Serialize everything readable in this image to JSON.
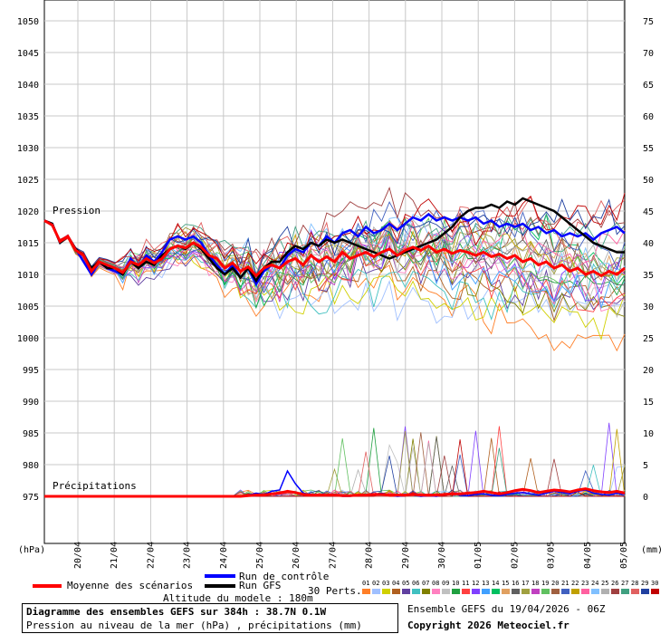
{
  "chart_data": {
    "type": "line",
    "title": "Diagramme des ensembles GEFS sur 384h : 38.7N 0.1W",
    "subtitle": "Pression au niveau de la mer (hPa) , précipitations (mm)",
    "left_axis_label": "(hPa)",
    "right_axis_label": "(mm)",
    "left_ticks": [
      1050,
      1045,
      1040,
      1035,
      1030,
      1025,
      1020,
      1015,
      1010,
      1005,
      1000,
      995,
      990,
      985,
      980,
      975
    ],
    "right_ticks": [
      75,
      70,
      65,
      60,
      55,
      50,
      45,
      40,
      35,
      30,
      25,
      20,
      15,
      10,
      5,
      0
    ],
    "ylim_pressure": [
      975,
      1050
    ],
    "ylim_precip": [
      0,
      75
    ],
    "x_ticks": [
      "20/04",
      "21/04",
      "22/04",
      "23/04",
      "24/04",
      "25/04",
      "26/04",
      "27/04",
      "28/04",
      "29/04",
      "30/04",
      "01/05",
      "02/05",
      "03/05",
      "04/05",
      "05/05"
    ],
    "panel_labels": {
      "pressure": "Pression",
      "precip": "Précipitations"
    },
    "series": [
      {
        "name": "Moyenne des scénarios",
        "color": "#ff0000",
        "values": [
          1018.5,
          1017.8,
          1015.2,
          1016.0,
          1013.8,
          1013.0,
          1010.5,
          1012.0,
          1011.5,
          1011.0,
          1010.3,
          1012.0,
          1011.5,
          1012.5,
          1011.8,
          1012.5,
          1014.0,
          1014.5,
          1014.2,
          1015.0,
          1014.3,
          1013.0,
          1012.5,
          1011.0,
          1011.8,
          1010.5,
          1011.2,
          1009.8,
          1011.0,
          1011.5,
          1011.0,
          1012.0,
          1012.5,
          1011.5,
          1013.0,
          1012.0,
          1012.8,
          1012.0,
          1013.5,
          1012.5,
          1013.0,
          1013.5,
          1012.8,
          1013.5,
          1014.0,
          1013.0,
          1013.8,
          1014.3,
          1013.8,
          1014.5,
          1013.5,
          1014.0,
          1013.3,
          1013.8,
          1013.5,
          1013.0,
          1013.5,
          1012.8,
          1013.2,
          1012.5,
          1013.0,
          1012.0,
          1012.5,
          1011.5,
          1012.0,
          1011.0,
          1011.5,
          1010.5,
          1011.0,
          1010.0,
          1010.5,
          1009.8,
          1010.5,
          1010.0,
          1011.0
        ]
      },
      {
        "name": "Run de contrôle",
        "color": "#0000ff",
        "values": [
          1018.5,
          1018.0,
          1015.0,
          1016.0,
          1014.0,
          1012.0,
          1010.0,
          1012.0,
          1011.0,
          1010.5,
          1010.0,
          1012.5,
          1011.0,
          1013.0,
          1012.0,
          1013.5,
          1015.5,
          1016.0,
          1015.5,
          1016.0,
          1015.0,
          1013.0,
          1011.5,
          1010.0,
          1011.5,
          1009.5,
          1011.0,
          1008.5,
          1010.5,
          1011.5,
          1011.0,
          1013.0,
          1014.0,
          1013.5,
          1015.0,
          1014.5,
          1016.0,
          1015.0,
          1016.5,
          1017.0,
          1016.0,
          1017.5,
          1016.5,
          1017.0,
          1018.0,
          1017.0,
          1018.0,
          1019.0,
          1018.5,
          1019.5,
          1018.5,
          1019.0,
          1018.5,
          1019.0,
          1018.5,
          1019.0,
          1018.0,
          1018.5,
          1017.5,
          1018.0,
          1017.5,
          1018.0,
          1017.0,
          1017.5,
          1016.5,
          1017.0,
          1016.0,
          1016.5,
          1016.0,
          1016.5,
          1015.5,
          1016.5,
          1017.0,
          1017.5,
          1016.5
        ]
      },
      {
        "name": "Run GFS",
        "color": "#000000",
        "values": [
          1018.5,
          1018.0,
          1015.0,
          1016.0,
          1014.0,
          1013.0,
          1011.0,
          1012.0,
          1011.0,
          1011.0,
          1010.0,
          1012.0,
          1011.0,
          1012.0,
          1011.5,
          1013.0,
          1014.0,
          1014.5,
          1014.0,
          1015.0,
          1014.0,
          1012.5,
          1011.0,
          1010.0,
          1011.0,
          1009.5,
          1011.0,
          1009.0,
          1011.0,
          1012.0,
          1012.0,
          1013.5,
          1014.5,
          1014.0,
          1015.0,
          1014.5,
          1015.5,
          1015.0,
          1015.5,
          1015.0,
          1014.5,
          1014.0,
          1013.5,
          1013.0,
          1012.5,
          1013.0,
          1013.5,
          1014.0,
          1014.5,
          1015.0,
          1015.5,
          1016.5,
          1017.5,
          1019.0,
          1020.0,
          1020.5,
          1020.5,
          1021.0,
          1020.5,
          1021.5,
          1021.0,
          1022.0,
          1021.5,
          1021.0,
          1020.5,
          1020.0,
          1019.0,
          1018.0,
          1017.0,
          1016.0,
          1015.0,
          1014.5,
          1014.0,
          1013.5,
          1013.5
        ]
      }
    ],
    "precip_control": [
      0,
      0,
      0,
      0,
      0,
      0,
      0,
      0,
      0,
      0,
      0,
      0,
      0,
      0,
      0,
      0,
      0,
      0,
      0,
      0,
      0,
      0,
      0,
      0,
      0,
      0,
      0.2,
      0.5,
      0.3,
      0.8,
      1.0,
      4.0,
      2.0,
      0.5,
      0.3,
      0.1,
      0.2,
      0.3,
      0,
      0,
      0.2,
      0.1,
      0.3,
      0.5,
      0.2,
      0,
      0.1,
      0.2,
      0,
      0.1,
      0,
      0.3,
      0.5,
      0.2,
      0.1,
      0.3,
      0.4,
      0.2,
      0.1,
      0.3,
      0.5,
      0.6,
      0.4,
      0.2,
      0.5,
      0.8,
      0.6,
      0.4,
      0.8,
      1.0,
      0.5,
      0.3,
      0.2,
      0.5,
      0.3
    ],
    "precip_mean": [
      0,
      0,
      0,
      0,
      0,
      0,
      0,
      0,
      0,
      0,
      0,
      0,
      0,
      0,
      0,
      0,
      0,
      0,
      0,
      0,
      0,
      0,
      0,
      0,
      0,
      0,
      0.1,
      0.2,
      0.2,
      0.4,
      0.5,
      0.8,
      0.6,
      0.3,
      0.2,
      0.2,
      0.2,
      0.2,
      0.1,
      0.1,
      0.2,
      0.2,
      0.3,
      0.3,
      0.2,
      0.2,
      0.2,
      0.3,
      0.2,
      0.2,
      0.2,
      0.3,
      0.4,
      0.4,
      0.5,
      0.6,
      0.8,
      0.6,
      0.4,
      0.6,
      0.9,
      1.1,
      0.9,
      0.6,
      0.8,
      1.0,
      0.9,
      0.7,
      1.0,
      1.2,
      0.9,
      0.7,
      0.6,
      0.8,
      0.5
    ]
  },
  "perturbations": {
    "count_label": "30 Perts.",
    "numbers": [
      "01",
      "02",
      "03",
      "04",
      "05",
      "06",
      "07",
      "08",
      "09",
      "10",
      "11",
      "12",
      "13",
      "14",
      "15",
      "16",
      "17",
      "18",
      "19",
      "20",
      "21",
      "22",
      "23",
      "24",
      "25",
      "26",
      "27",
      "28",
      "29",
      "30"
    ],
    "colors": [
      "#ff7f27",
      "#a0c0ff",
      "#d0d000",
      "#b06020",
      "#6040a0",
      "#40c0c0",
      "#808000",
      "#ff80c0",
      "#c0c0c0",
      "#20a040",
      "#ff4040",
      "#8040ff",
      "#40a0ff",
      "#00c060",
      "#e0a060",
      "#606060",
      "#a0a040",
      "#c040c0",
      "#60c060",
      "#a06040",
      "#4060c0",
      "#c0a000",
      "#ff60a0",
      "#80c0ff",
      "#b0b0b0",
      "#a04040",
      "#40a080",
      "#e06060",
      "#2040a0",
      "#c00000"
    ]
  },
  "legend": {
    "mean_label": "Moyenne des scénarios",
    "control_label": "Run de contrôle",
    "gfs_label": "Run GFS",
    "altitude": "Altitude du modele : 180m"
  },
  "footer": {
    "title_line1": "Diagramme des ensembles GEFS sur 384h : 38.7N 0.1W",
    "title_line2": "Pression au niveau de la mer (hPa) , précipitations (mm)",
    "run_info": "Ensemble GEFS du 19/04/2026 - 06Z",
    "copyright": "Copyright 2026 Meteociel.fr"
  }
}
